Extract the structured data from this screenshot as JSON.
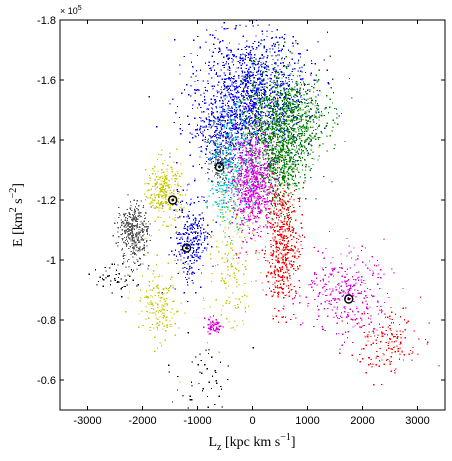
{
  "chart_data": {
    "type": "scatter",
    "title": "",
    "xlabel": "L_z [kpc km s^-1]",
    "ylabel": "E [km^2 s^-2]",
    "xlim": [
      -3500,
      3500
    ],
    "ylim": [
      -1.8,
      -0.5
    ],
    "y_scale_note": "× 10^5",
    "x_ticks": [
      -3000,
      -2000,
      -1000,
      0,
      1000,
      2000,
      3000
    ],
    "y_ticks": [
      -1.8,
      -1.6,
      -1.4,
      -1.2,
      -1.0,
      -0.8,
      -0.6
    ],
    "x_tick_labels": [
      "-3000",
      "-2000",
      "-1000",
      "0",
      "1000",
      "2000",
      "3000"
    ],
    "y_tick_labels": [
      "-1.8",
      "-1.6",
      "-1.4",
      "-1.2",
      "-1",
      "-0.8",
      "-0.6"
    ],
    "grid": false,
    "legend": "none",
    "series": [
      {
        "color": "#0000ff",
        "clumps": [
          {
            "x": 0,
            "y": -1.56,
            "sx": 500,
            "sy": 0.1,
            "n": 1300
          },
          {
            "x": -600,
            "y": -1.42,
            "sx": 300,
            "sy": 0.06,
            "n": 300
          },
          {
            "x": -1100,
            "y": -1.06,
            "sx": 160,
            "sy": 0.08,
            "n": 280
          }
        ]
      },
      {
        "color": "#008000",
        "clumps": [
          {
            "x": 550,
            "y": -1.45,
            "sx": 380,
            "sy": 0.09,
            "n": 1200
          },
          {
            "x": 500,
            "y": -1.3,
            "sx": 200,
            "sy": 0.07,
            "n": 300
          }
        ]
      },
      {
        "color": "#00c8c8",
        "clumps": [
          {
            "x": -400,
            "y": -1.3,
            "sx": 200,
            "sy": 0.09,
            "n": 420
          }
        ]
      },
      {
        "color": "#e000e0",
        "clumps": [
          {
            "x": 0,
            "y": -1.25,
            "sx": 200,
            "sy": 0.08,
            "n": 700
          },
          {
            "x": 1700,
            "y": -0.9,
            "sx": 380,
            "sy": 0.07,
            "n": 320
          },
          {
            "x": -700,
            "y": -0.78,
            "sx": 80,
            "sy": 0.015,
            "n": 70
          }
        ]
      },
      {
        "color": "#ff0000",
        "clumps": [
          {
            "x": 550,
            "y": -1.05,
            "sx": 160,
            "sy": 0.1,
            "n": 500
          },
          {
            "x": 2400,
            "y": -0.72,
            "sx": 300,
            "sy": 0.06,
            "n": 160
          }
        ]
      },
      {
        "color": "#c8c800",
        "clumps": [
          {
            "x": -1600,
            "y": -1.23,
            "sx": 150,
            "sy": 0.05,
            "n": 280
          },
          {
            "x": -1700,
            "y": -0.85,
            "sx": 200,
            "sy": 0.06,
            "n": 170
          },
          {
            "x": -400,
            "y": -1.0,
            "sx": 200,
            "sy": 0.12,
            "n": 170
          }
        ]
      },
      {
        "color": "#555555",
        "clumps": [
          {
            "x": -2150,
            "y": -1.09,
            "sx": 130,
            "sy": 0.05,
            "n": 360
          },
          {
            "x": -600,
            "y": -1.35,
            "sx": 120,
            "sy": 0.05,
            "n": 100
          }
        ]
      },
      {
        "color": "#000000",
        "clumps": [
          {
            "x": -900,
            "y": -0.6,
            "sx": 300,
            "sy": 0.08,
            "n": 50
          },
          {
            "x": -2500,
            "y": -0.95,
            "sx": 200,
            "sy": 0.03,
            "n": 50
          }
        ]
      }
    ],
    "markers": [
      {
        "x": -1450,
        "y": -1.2
      },
      {
        "x": -1200,
        "y": -1.04
      },
      {
        "x": -600,
        "y": -1.31
      },
      {
        "x": 1750,
        "y": -0.87
      }
    ]
  }
}
